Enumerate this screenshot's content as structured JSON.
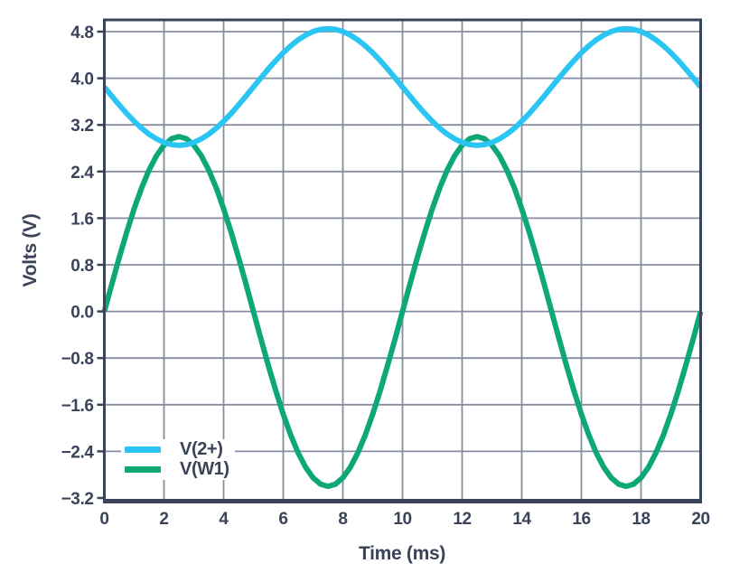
{
  "figure": {
    "background": "#FFFFFF"
  },
  "chart_data": {
    "type": "line",
    "title": "",
    "xlabel": "Time (ms)",
    "ylabel": "Volts (V)",
    "x_axis": {
      "unit": "ms",
      "min": 0,
      "max": 20,
      "tick_step": 2,
      "tick_values": [
        0,
        2,
        4,
        6,
        8,
        10,
        12,
        14,
        16,
        18,
        20
      ],
      "tick_labels": [
        "0",
        "2",
        "4",
        "6",
        "8",
        "10",
        "12",
        "14",
        "16",
        "18",
        "20"
      ]
    },
    "y_axis": {
      "unit": "V",
      "min": -3.2,
      "max": 4.8,
      "tick_step": 0.8,
      "tick_values": [
        4.8,
        4.0,
        3.2,
        2.4,
        1.6,
        0.8,
        0.0,
        -0.8,
        -1.6,
        -2.4,
        -3.2
      ],
      "tick_labels": [
        "4.8",
        "4.0",
        "3.2",
        "2.4",
        "1.6",
        "0.8",
        "0.0",
        "−0.8",
        "−1.6",
        "−2.4",
        "−3.2"
      ]
    },
    "grid": {
      "show": true,
      "color": "#878DA0",
      "vertical_every_ms": 2,
      "horizontal_every_v": 0.8
    },
    "axis_color": "#3A4358",
    "text_color": "#3A4358",
    "legend": {
      "position": "inside-bottom-left",
      "background": "#FFFFFF"
    },
    "sampling": {
      "t_start_ms": 0,
      "t_step_ms": 0.25,
      "n_points": 81
    },
    "series": [
      {
        "name": "V(2+)",
        "color": "#2AC5F2",
        "draw_order": 2,
        "waveform": "sine",
        "period_ms": 10,
        "frequency_hz": 100,
        "amplitude_v": 1.0,
        "offset_v": 3.85,
        "min_v": 2.85,
        "max_v": 4.85,
        "model": "v(t) = 3.85 − 1.0·sin(2π·t/10ms)",
        "values_v": [
          3.85,
          3.694,
          3.541,
          3.396,
          3.262,
          3.143,
          3.041,
          2.959,
          2.899,
          2.862,
          2.85,
          2.862,
          2.899,
          2.959,
          3.041,
          3.143,
          3.262,
          3.396,
          3.541,
          3.694,
          3.85,
          4.006,
          4.159,
          4.304,
          4.438,
          4.557,
          4.659,
          4.741,
          4.801,
          4.838,
          4.85,
          4.838,
          4.801,
          4.741,
          4.659,
          4.557,
          4.438,
          4.304,
          4.159,
          4.006,
          3.85,
          3.694,
          3.541,
          3.396,
          3.262,
          3.143,
          3.041,
          2.959,
          2.899,
          2.862,
          2.85,
          2.862,
          2.899,
          2.959,
          3.041,
          3.143,
          3.262,
          3.396,
          3.541,
          3.694,
          3.85,
          4.006,
          4.159,
          4.304,
          4.438,
          4.557,
          4.659,
          4.741,
          4.801,
          4.838,
          4.85,
          4.838,
          4.801,
          4.741,
          4.659,
          4.557,
          4.438,
          4.304,
          4.159,
          4.006,
          3.85
        ]
      },
      {
        "name": "V(W1)",
        "color": "#0EA778",
        "draw_order": 1,
        "waveform": "sine",
        "period_ms": 10,
        "frequency_hz": 100,
        "amplitude_v": 3.0,
        "offset_v": 0.0,
        "min_v": -3.0,
        "max_v": 3.0,
        "model": "v(t) = 3.0·sin(2π·t/10ms)",
        "values_v": [
          0,
          0.469,
          0.927,
          1.362,
          1.763,
          2.121,
          2.427,
          2.673,
          2.853,
          2.963,
          3,
          2.963,
          2.853,
          2.673,
          2.427,
          2.121,
          1.763,
          1.362,
          0.927,
          0.469,
          0,
          -0.469,
          -0.927,
          -1.362,
          -1.763,
          -2.121,
          -2.427,
          -2.673,
          -2.853,
          -2.963,
          -3,
          -2.963,
          -2.853,
          -2.673,
          -2.427,
          -2.121,
          -1.763,
          -1.362,
          -0.927,
          -0.469,
          0,
          0.469,
          0.927,
          1.362,
          1.763,
          2.121,
          2.427,
          2.673,
          2.853,
          2.963,
          3,
          2.963,
          2.853,
          2.673,
          2.427,
          2.121,
          1.763,
          1.362,
          0.927,
          0.469,
          0,
          -0.469,
          -0.927,
          -1.362,
          -1.763,
          -2.121,
          -2.427,
          -2.673,
          -2.853,
          -2.963,
          -3,
          -2.963,
          -2.853,
          -2.673,
          -2.427,
          -2.121,
          -1.763,
          -1.362,
          -0.927,
          -0.469,
          0
        ]
      }
    ]
  }
}
